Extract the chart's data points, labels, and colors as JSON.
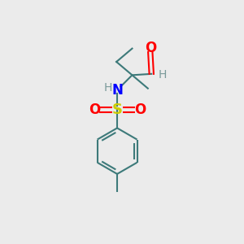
{
  "bg_color": "#ebebeb",
  "bond_color": "#3d7a7a",
  "bond_width": 1.5,
  "atom_colors": {
    "O": "#ff0000",
    "N": "#0000ff",
    "S": "#cccc00",
    "H_label": "#7a9a9a",
    "C": "#3d7a7a"
  },
  "figsize": [
    3.0,
    3.0
  ],
  "dpi": 100
}
